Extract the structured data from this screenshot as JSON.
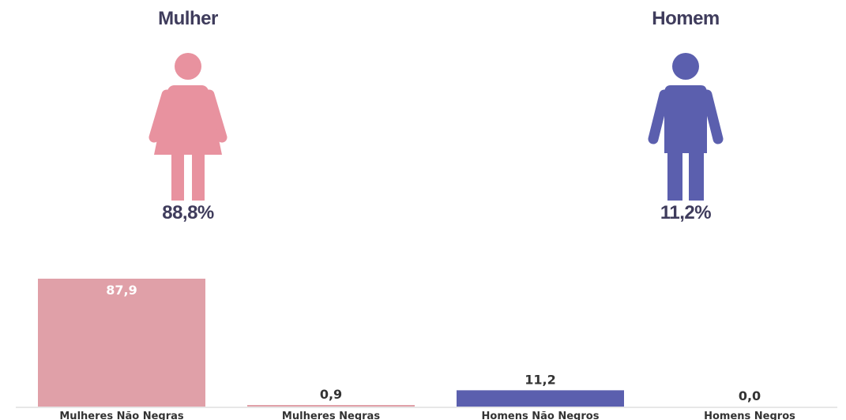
{
  "colors": {
    "title_text": "#3f3c5c",
    "female": "#e8929f",
    "male": "#5b5fae",
    "bar_female": "#e0a0a8",
    "bar_male": "#5b5fae",
    "label_dark": "#333333",
    "label_light": "#ffffff",
    "axis": "#cfcfcf"
  },
  "female": {
    "title": "Mulher",
    "percent": "88,8%",
    "icon": "woman-icon"
  },
  "male": {
    "title": "Homem",
    "percent": "11,2%",
    "icon": "man-icon"
  },
  "chart_data": {
    "type": "bar",
    "categories": [
      "Mulheres Não Negras",
      "Mulheres Negras",
      "Homens Não Negros",
      "Homens Negros"
    ],
    "values": [
      87.9,
      0.9,
      11.2,
      0.0
    ],
    "value_labels": [
      "87,9",
      "0,9",
      "11,2",
      "0,0"
    ],
    "bar_colors": [
      "#e0a0a8",
      "#e0a0a8",
      "#5b5fae",
      "#5b5fae"
    ],
    "title": "",
    "xlabel": "",
    "ylabel": "",
    "ylim": [
      0,
      87.9
    ],
    "grid": false,
    "legend": "none"
  }
}
